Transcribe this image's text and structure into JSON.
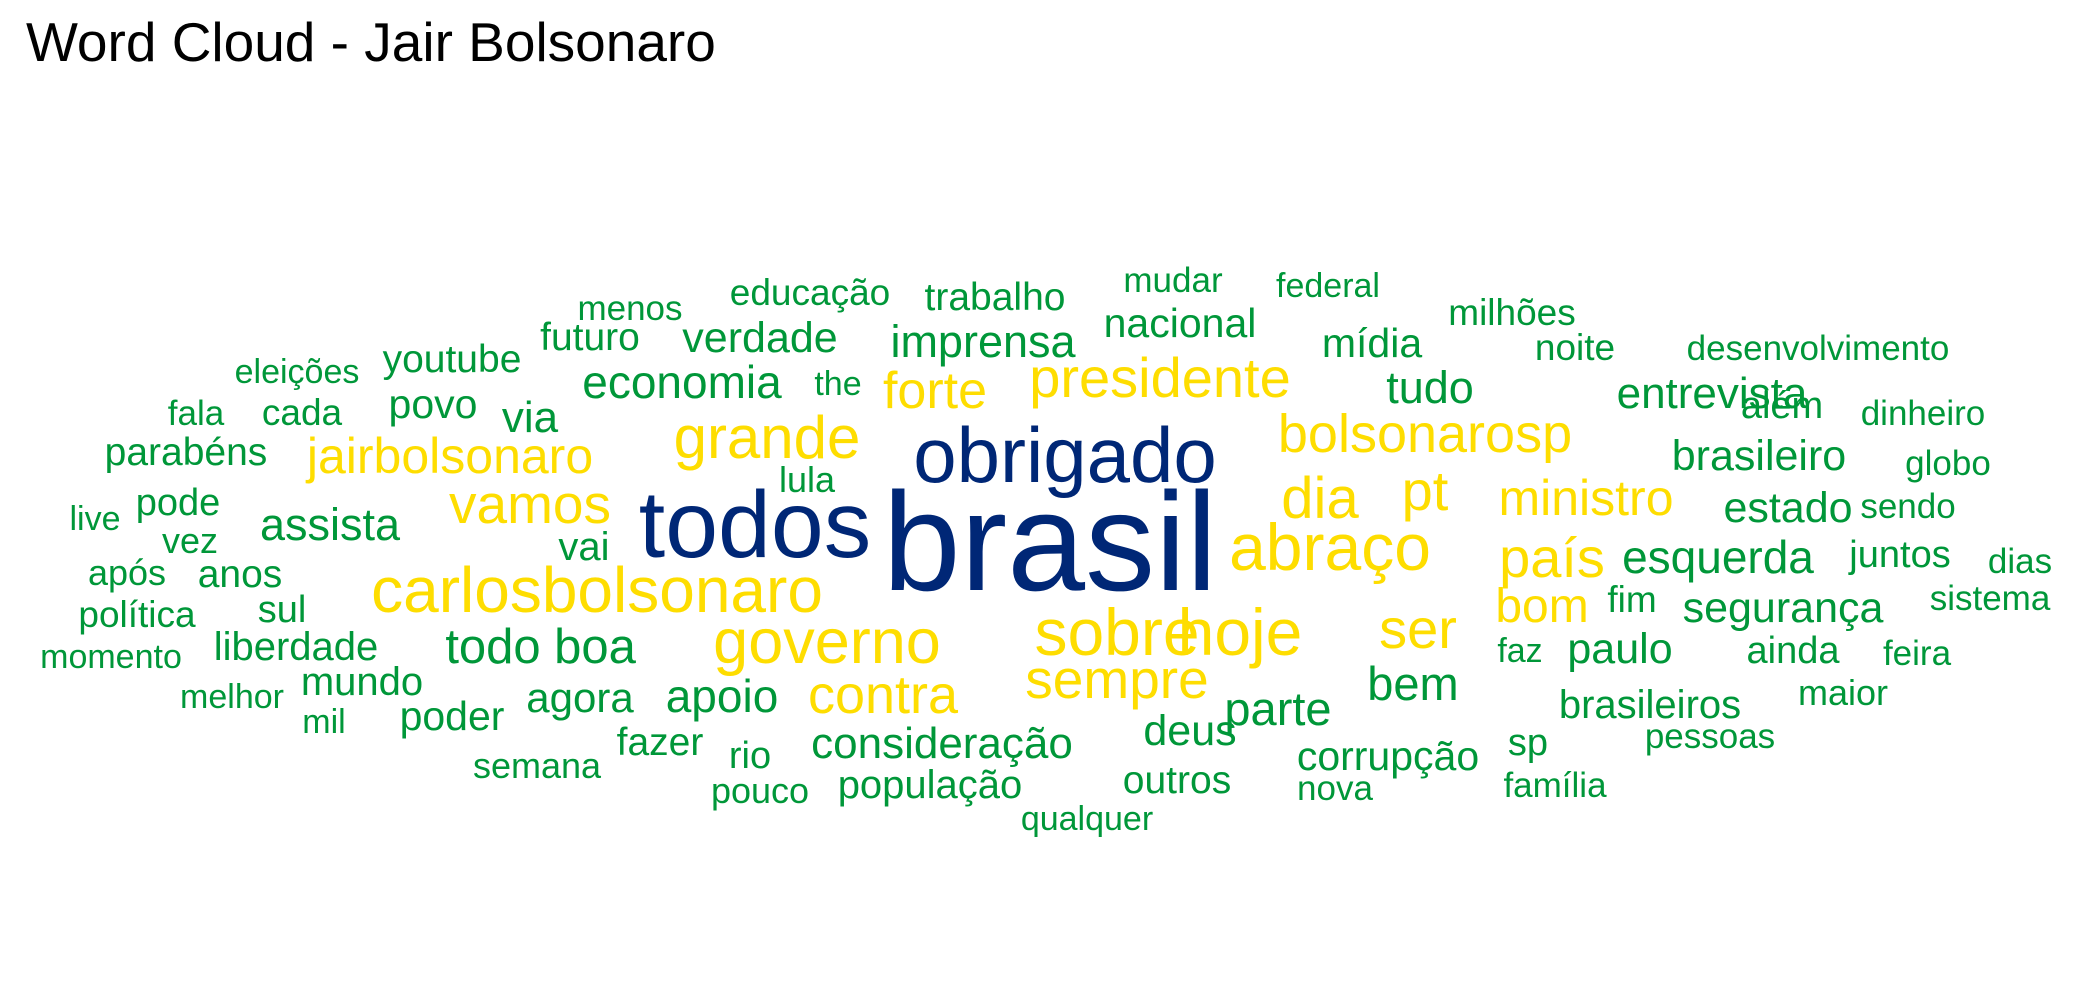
{
  "title": "Word Cloud - Jair Bolsonaro",
  "colors": {
    "top": "#002776",
    "high": "#FEDD00",
    "low": "#009739"
  },
  "chart_data": {
    "type": "wordcloud",
    "title": "Word Cloud - Jair Bolsonaro",
    "words": [
      {
        "text": "brasil",
        "tier": "top"
      },
      {
        "text": "todos",
        "tier": "top"
      },
      {
        "text": "obrigado",
        "tier": "top"
      },
      {
        "text": "carlosbolsonaro",
        "tier": "high"
      },
      {
        "text": "abraço",
        "tier": "high"
      },
      {
        "text": "hoje",
        "tier": "high"
      },
      {
        "text": "sobre",
        "tier": "high"
      },
      {
        "text": "governo",
        "tier": "high"
      },
      {
        "text": "grande",
        "tier": "high"
      },
      {
        "text": "presidente",
        "tier": "high"
      },
      {
        "text": "bolsonarosp",
        "tier": "high"
      },
      {
        "text": "vamos",
        "tier": "high"
      },
      {
        "text": "dia",
        "tier": "high"
      },
      {
        "text": "pt",
        "tier": "high"
      },
      {
        "text": "país",
        "tier": "high"
      },
      {
        "text": "ser",
        "tier": "high"
      },
      {
        "text": "sempre",
        "tier": "high"
      },
      {
        "text": "contra",
        "tier": "high"
      },
      {
        "text": "forte",
        "tier": "high"
      },
      {
        "text": "jairbolsonaro",
        "tier": "high"
      },
      {
        "text": "ministro",
        "tier": "high"
      },
      {
        "text": "bom",
        "tier": "high"
      },
      {
        "text": "esquerda",
        "tier": "low"
      },
      {
        "text": "economia",
        "tier": "low"
      },
      {
        "text": "imprensa",
        "tier": "low"
      },
      {
        "text": "entrevista",
        "tier": "low"
      },
      {
        "text": "segurança",
        "tier": "low"
      },
      {
        "text": "brasileiro",
        "tier": "low"
      },
      {
        "text": "estado",
        "tier": "low"
      },
      {
        "text": "verdade",
        "tier": "low"
      },
      {
        "text": "nacional",
        "tier": "low"
      },
      {
        "text": "tudo",
        "tier": "low"
      },
      {
        "text": "mídia",
        "tier": "low"
      },
      {
        "text": "parte",
        "tier": "low"
      },
      {
        "text": "bem",
        "tier": "low"
      },
      {
        "text": "boa",
        "tier": "low"
      },
      {
        "text": "todo",
        "tier": "low"
      },
      {
        "text": "assista",
        "tier": "low"
      },
      {
        "text": "consideração",
        "tier": "low"
      },
      {
        "text": "corrupção",
        "tier": "low"
      },
      {
        "text": "brasileiros",
        "tier": "low"
      },
      {
        "text": "paulo",
        "tier": "low"
      },
      {
        "text": "apoio",
        "tier": "low"
      },
      {
        "text": "deus",
        "tier": "low"
      },
      {
        "text": "liberdade",
        "tier": "low"
      },
      {
        "text": "agora",
        "tier": "low"
      },
      {
        "text": "poder",
        "tier": "low"
      },
      {
        "text": "mundo",
        "tier": "low"
      },
      {
        "text": "povo",
        "tier": "low"
      },
      {
        "text": "via",
        "tier": "low"
      },
      {
        "text": "youtube",
        "tier": "low"
      },
      {
        "text": "futuro",
        "tier": "low"
      },
      {
        "text": "trabalho",
        "tier": "low"
      },
      {
        "text": "educação",
        "tier": "low"
      },
      {
        "text": "parabéns",
        "tier": "low"
      },
      {
        "text": "população",
        "tier": "low"
      },
      {
        "text": "fazer",
        "tier": "low"
      },
      {
        "text": "outros",
        "tier": "low"
      },
      {
        "text": "anos",
        "tier": "low"
      },
      {
        "text": "além",
        "tier": "low"
      },
      {
        "text": "juntos",
        "tier": "low"
      },
      {
        "text": "ainda",
        "tier": "low"
      },
      {
        "text": "maior",
        "tier": "low"
      },
      {
        "text": "milhões",
        "tier": "low"
      },
      {
        "text": "noite",
        "tier": "low"
      },
      {
        "text": "mudar",
        "tier": "low"
      },
      {
        "text": "federal",
        "tier": "low"
      },
      {
        "text": "desenvolvimento",
        "tier": "low"
      },
      {
        "text": "dinheiro",
        "tier": "low"
      },
      {
        "text": "globo",
        "tier": "low"
      },
      {
        "text": "sendo",
        "tier": "low"
      },
      {
        "text": "dias",
        "tier": "low"
      },
      {
        "text": "sistema",
        "tier": "low"
      },
      {
        "text": "feira",
        "tier": "low"
      },
      {
        "text": "pessoas",
        "tier": "low"
      },
      {
        "text": "sp",
        "tier": "low"
      },
      {
        "text": "família",
        "tier": "low"
      },
      {
        "text": "nova",
        "tier": "low"
      },
      {
        "text": "qualquer",
        "tier": "low"
      },
      {
        "text": "pouco",
        "tier": "low"
      },
      {
        "text": "rio",
        "tier": "low"
      },
      {
        "text": "semana",
        "tier": "low"
      },
      {
        "text": "menos",
        "tier": "low"
      },
      {
        "text": "eleições",
        "tier": "low"
      },
      {
        "text": "fala",
        "tier": "low"
      },
      {
        "text": "cada",
        "tier": "low"
      },
      {
        "text": "live",
        "tier": "low"
      },
      {
        "text": "pode",
        "tier": "low"
      },
      {
        "text": "vez",
        "tier": "low"
      },
      {
        "text": "após",
        "tier": "low"
      },
      {
        "text": "sul",
        "tier": "low"
      },
      {
        "text": "política",
        "tier": "low"
      },
      {
        "text": "momento",
        "tier": "low"
      },
      {
        "text": "melhor",
        "tier": "low"
      },
      {
        "text": "mil",
        "tier": "low"
      },
      {
        "text": "lula",
        "tier": "low"
      },
      {
        "text": "vai",
        "tier": "low"
      },
      {
        "text": "the",
        "tier": "low"
      },
      {
        "text": "fim",
        "tier": "low"
      },
      {
        "text": "faz",
        "tier": "low"
      }
    ]
  }
}
